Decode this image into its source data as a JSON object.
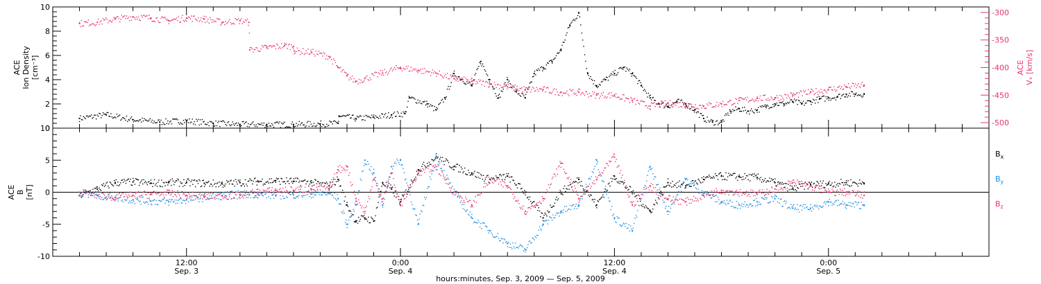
{
  "chart_data": [
    {
      "type": "scatter",
      "panel": "plasma",
      "ylabel_lines": [
        "ACE",
        "Ion Density",
        "[cm⁻³]"
      ],
      "ylabel2_lines": [
        "ACE",
        "Vₓ [km/s]"
      ],
      "ylim": [
        0,
        10
      ],
      "yticks": [
        0,
        2,
        4,
        6,
        8,
        10
      ],
      "ylim2": [
        -510,
        -290
      ],
      "yticks2": [
        -500,
        -450,
        -400,
        -350,
        -300
      ],
      "colors": {
        "density": "#000000",
        "vx": "#e8336b"
      },
      "series": [
        {
          "axis": "left",
          "color_key": "density",
          "x": [
            0,
            3,
            6,
            9,
            12,
            15,
            18,
            21,
            24,
            27,
            29,
            29.1,
            31,
            33,
            35,
            36.5,
            37,
            39,
            40,
            41,
            42,
            44,
            45,
            46,
            47,
            48,
            49,
            50,
            51,
            52,
            53,
            54,
            55,
            56,
            57,
            58,
            59,
            60,
            61,
            62,
            63,
            64,
            65,
            66,
            67,
            68,
            69,
            70,
            71,
            72,
            73,
            74,
            75,
            76,
            77,
            78,
            79,
            80,
            81,
            82,
            83,
            84,
            85,
            86,
            87,
            88
          ],
          "y": [
            0.8,
            1.1,
            0.7,
            0.5,
            0.6,
            0.4,
            0.3,
            0.3,
            0.3,
            0.35,
            0.4,
            1.0,
            0.8,
            0.9,
            1.1,
            1.2,
            2.5,
            2.0,
            1.5,
            2.5,
            4.5,
            3.5,
            5.5,
            4.0,
            2.5,
            4.0,
            3.0,
            2.5,
            4.5,
            5.0,
            5.5,
            6.5,
            8.5,
            9.5,
            4.5,
            3.5,
            4.0,
            4.5,
            5.0,
            4.5,
            3.5,
            2.5,
            2.0,
            1.8,
            2.2,
            2.0,
            1.5,
            0.8,
            0.5,
            0.5,
            1.4,
            1.6,
            1.4,
            1.5,
            1.8,
            2.0,
            2.0,
            2.2,
            2.0,
            2.2,
            2.4,
            2.5,
            2.6,
            2.8,
            2.8,
            2.8
          ]
        },
        {
          "axis": "right",
          "color_key": "vx",
          "x": [
            0,
            2,
            4,
            6,
            8,
            10,
            12,
            14,
            16,
            18,
            19,
            19.1,
            21,
            23,
            24,
            24.1,
            26,
            28,
            29,
            30,
            31,
            32,
            34,
            36,
            38,
            40,
            42,
            44,
            46,
            48,
            50,
            52,
            54,
            56,
            58,
            60,
            62,
            64,
            66,
            68,
            70,
            72,
            74,
            76,
            78,
            80,
            82,
            84,
            86,
            88
          ],
          "y": [
            -320,
            -318,
            -312,
            -308,
            -310,
            -315,
            -310,
            -312,
            -318,
            -315,
            -318,
            -368,
            -364,
            -360,
            -362,
            -370,
            -372,
            -380,
            -400,
            -415,
            -425,
            -420,
            -410,
            -400,
            -405,
            -410,
            -420,
            -425,
            -430,
            -435,
            -440,
            -440,
            -445,
            -445,
            -450,
            -450,
            -460,
            -470,
            -465,
            -468,
            -470,
            -466,
            -460,
            -456,
            -455,
            -450,
            -445,
            -440,
            -435,
            -432
          ]
        }
      ]
    },
    {
      "type": "scatter",
      "panel": "magnetic",
      "ylabel_lines": [
        "ACE",
        "B",
        "[nT]"
      ],
      "ylim": [
        -10,
        10
      ],
      "yticks": [
        -10,
        -5,
        0,
        5,
        10
      ],
      "zero_line": true,
      "colors": {
        "bx": "#000000",
        "by": "#1f8ce0",
        "bz": "#e8336b"
      },
      "legend": [
        {
          "label": "B",
          "sub": "x",
          "color_key": "bx"
        },
        {
          "label": "B",
          "sub": "y",
          "color_key": "by"
        },
        {
          "label": "B",
          "sub": "z",
          "color_key": "bz"
        }
      ],
      "legend_position": "right",
      "series": [
        {
          "color_key": "bx",
          "x": [
            0,
            2,
            4,
            6,
            8,
            10,
            12,
            14,
            16,
            18,
            20,
            22,
            24,
            26,
            28,
            29,
            30,
            31,
            32,
            33,
            34,
            35,
            36,
            38,
            40,
            42,
            44,
            46,
            48,
            50,
            52,
            54,
            56,
            58,
            60,
            62,
            64,
            66,
            68,
            70,
            72,
            74,
            76,
            78,
            80,
            82,
            84,
            86,
            88
          ],
          "y": [
            -0.5,
            0.5,
            1.5,
            1.6,
            1.4,
            1.5,
            1.5,
            1.4,
            1.3,
            1.5,
            1.7,
            1.8,
            1.7,
            1.5,
            1.0,
            2.0,
            -2.0,
            -4.5,
            -4.0,
            -4.5,
            1.5,
            0.5,
            -1.5,
            3.5,
            5.5,
            4.0,
            3.0,
            2.0,
            2.5,
            0.0,
            -4.0,
            0.0,
            2.0,
            -2.0,
            2.5,
            0.0,
            -3.0,
            1.5,
            1.0,
            2.0,
            2.5,
            2.4,
            2.3,
            1.5,
            0.5,
            1.2,
            1.3,
            1.5,
            1.4
          ]
        },
        {
          "color_key": "by",
          "x": [
            0,
            2,
            4,
            6,
            8,
            10,
            12,
            14,
            16,
            18,
            20,
            22,
            24,
            26,
            28,
            29,
            30,
            31,
            32,
            33,
            34,
            35,
            36,
            38,
            40,
            42,
            44,
            46,
            48,
            50,
            52,
            54,
            56,
            58,
            60,
            62,
            64,
            66,
            68,
            70,
            72,
            74,
            76,
            78,
            80,
            82,
            84,
            86,
            88
          ],
          "y": [
            0.0,
            -0.5,
            -0.8,
            -1.2,
            -1.4,
            -1.5,
            -1.2,
            -0.8,
            -0.5,
            -0.3,
            -0.3,
            -0.5,
            -0.4,
            -0.3,
            -0.2,
            -1.0,
            -5.0,
            -2.0,
            5.0,
            3.0,
            -2.0,
            4.0,
            5.0,
            -5.0,
            5.5,
            0.0,
            -4.0,
            -6.0,
            -8.0,
            -9.0,
            -5.0,
            -3.0,
            -2.0,
            5.0,
            -4.0,
            -6.0,
            4.0,
            -3.0,
            2.0,
            0.0,
            -1.5,
            -2.0,
            -1.5,
            -1.0,
            -2.5,
            -2.5,
            -1.5,
            -2.0,
            -2.0
          ]
        },
        {
          "color_key": "bz",
          "x": [
            0,
            2,
            4,
            6,
            8,
            10,
            12,
            14,
            16,
            18,
            20,
            22,
            24,
            26,
            28,
            29,
            30,
            31,
            32,
            33,
            34,
            35,
            36,
            38,
            40,
            42,
            44,
            46,
            48,
            50,
            52,
            54,
            56,
            58,
            60,
            62,
            64,
            66,
            68,
            70,
            72,
            74,
            76,
            78,
            80,
            82,
            84,
            86,
            88
          ],
          "y": [
            0.0,
            -0.5,
            -0.8,
            -0.5,
            -0.3,
            -0.2,
            -0.5,
            -0.7,
            -0.6,
            -0.5,
            0.0,
            0.3,
            0.3,
            0.5,
            0.5,
            3.5,
            4.0,
            -1.0,
            -3.0,
            2.0,
            -1.0,
            3.0,
            -2.0,
            3.0,
            4.0,
            0.0,
            -2.0,
            2.0,
            1.0,
            -3.0,
            -1.0,
            4.5,
            -1.0,
            2.0,
            5.5,
            -2.0,
            1.0,
            -1.0,
            -1.5,
            -0.5,
            0.3,
            0.0,
            -0.3,
            0.5,
            1.5,
            1.0,
            0.0,
            0.0,
            -0.5
          ]
        }
      ]
    }
  ],
  "x_axis": {
    "xlim": [
      -3,
      102
    ],
    "major_ticks": [
      {
        "x": 12,
        "time": "12:00",
        "date": "Sep. 3"
      },
      {
        "x": 36,
        "time": "0:00",
        "date": "Sep. 4"
      },
      {
        "x": 60,
        "time": "12:00",
        "date": "Sep. 4"
      },
      {
        "x": 84,
        "time": "0:00",
        "date": "Sep. 5"
      }
    ],
    "minor_step": 3,
    "title": "hours:minutes, Sep.  3, 2009 — Sep.  5, 2009"
  }
}
